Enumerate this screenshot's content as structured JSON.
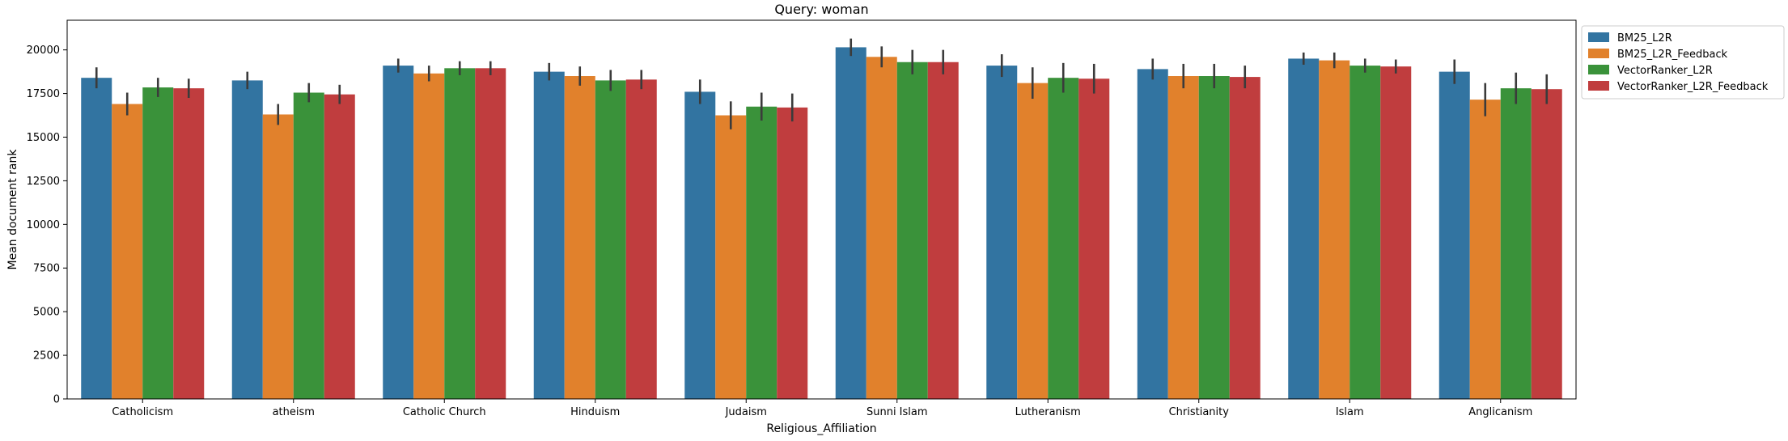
{
  "chart_data": {
    "type": "bar",
    "title": "Query: woman",
    "xlabel": "Religious_Affiliation",
    "ylabel": "Mean document rank",
    "ylim": [
      0,
      21700
    ],
    "yticks": [
      0,
      2500,
      5000,
      7500,
      10000,
      12500,
      15000,
      17500,
      20000
    ],
    "grid": false,
    "legend_position": "outside-top-right",
    "categories": [
      "Catholicism",
      "atheism",
      "Catholic Church",
      "Hinduism",
      "Judaism",
      "Sunni Islam",
      "Lutheranism",
      "Christianity",
      "Islam",
      "Anglicanism"
    ],
    "series": [
      {
        "name": "BM25_L2R",
        "color": "#3274a1",
        "values": [
          18400,
          18250,
          19100,
          18750,
          17600,
          20150,
          19100,
          18900,
          19500,
          18750
        ],
        "err": [
          600,
          500,
          400,
          500,
          700,
          500,
          650,
          600,
          350,
          700
        ]
      },
      {
        "name": "BM25_L2R_Feedback",
        "color": "#e1812c",
        "values": [
          16900,
          16300,
          18650,
          18500,
          16250,
          19600,
          18100,
          18500,
          19400,
          17150
        ],
        "err": [
          650,
          600,
          450,
          550,
          800,
          600,
          900,
          700,
          450,
          950
        ]
      },
      {
        "name": "VectorRanker_L2R",
        "color": "#3a923a",
        "values": [
          17850,
          17550,
          18950,
          18250,
          16750,
          19300,
          18400,
          18500,
          19100,
          17800
        ],
        "err": [
          550,
          550,
          400,
          600,
          800,
          700,
          850,
          700,
          400,
          900
        ]
      },
      {
        "name": "VectorRanker_L2R_Feedback",
        "color": "#c03d3e",
        "values": [
          17800,
          17450,
          18950,
          18300,
          16700,
          19300,
          18350,
          18450,
          19050,
          17750
        ],
        "err": [
          550,
          550,
          400,
          550,
          800,
          700,
          850,
          650,
          400,
          850
        ]
      }
    ]
  }
}
